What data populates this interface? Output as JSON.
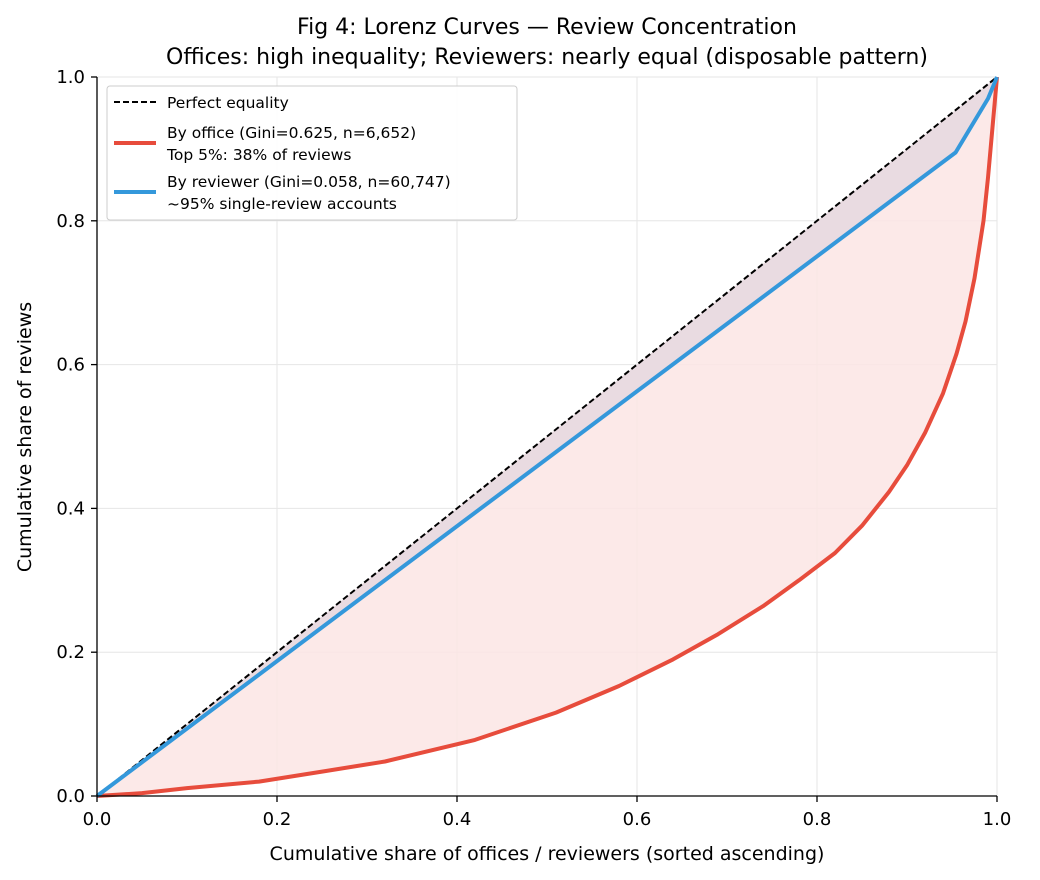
{
  "chart_data": {
    "type": "line",
    "title": "Fig 4: Lorenz Curves — Review Concentration",
    "subtitle": "Offices: high inequality; Reviewers: nearly equal (disposable pattern)",
    "xlabel": "Cumulative share of offices / reviewers (sorted ascending)",
    "ylabel": "Cumulative share of reviews",
    "xlim": [
      0,
      1
    ],
    "ylim": [
      0,
      1
    ],
    "xticks": [
      "0.0",
      "0.2",
      "0.4",
      "0.6",
      "0.8",
      "1.0"
    ],
    "yticks": [
      "0.0",
      "0.2",
      "0.4",
      "0.6",
      "0.8",
      "1.0"
    ],
    "grid": true,
    "legend_position": "top-left",
    "series": [
      {
        "name": "Perfect equality",
        "style": "dashed",
        "color": "#000000",
        "x": [
          0,
          1
        ],
        "y": [
          0,
          1
        ]
      },
      {
        "name": "By office (Gini=0.625, n=6,652)",
        "name_line2": "Top 5%: 38% of reviews",
        "color": "#e74c3c",
        "fill": "#fbe5e4",
        "x": [
          0,
          0.05,
          0.1,
          0.18,
          0.25,
          0.32,
          0.42,
          0.51,
          0.58,
          0.64,
          0.69,
          0.74,
          0.78,
          0.82,
          0.85,
          0.88,
          0.9,
          0.92,
          0.94,
          0.955,
          0.965,
          0.975,
          0.985,
          0.99,
          0.995,
          1.0
        ],
        "y": [
          0,
          0.004,
          0.011,
          0.02,
          0.034,
          0.048,
          0.078,
          0.116,
          0.153,
          0.19,
          0.225,
          0.264,
          0.3,
          0.338,
          0.376,
          0.423,
          0.46,
          0.505,
          0.56,
          0.615,
          0.66,
          0.72,
          0.8,
          0.86,
          0.93,
          1.0
        ]
      },
      {
        "name": "By reviewer (Gini=0.058, n=60,747)",
        "name_line2": "~95% single-review accounts",
        "color": "#3498db",
        "fill": "#e5e0e8",
        "x": [
          0,
          0.954,
          0.99,
          1.0
        ],
        "y": [
          0,
          0.895,
          0.97,
          1.0
        ]
      }
    ]
  }
}
